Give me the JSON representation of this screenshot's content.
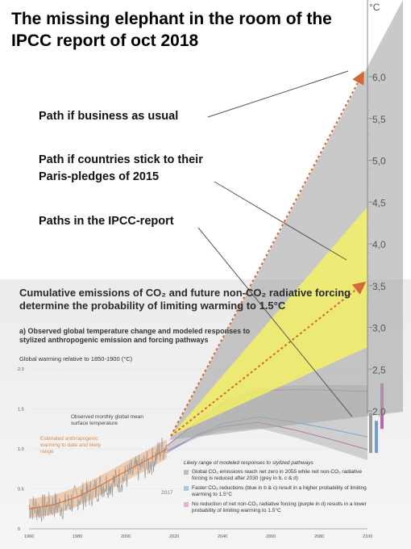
{
  "headline": "The missing elephant in the room of the IPCC report of oct 2018",
  "annotations": {
    "business_as_usual": "Path if business as usual",
    "paris_pledges": "Path if countries stick to their Paris-pledges of 2015",
    "ipcc_paths": "Paths in the IPCC-report"
  },
  "overlay_axis": {
    "unit": "°C",
    "ticks": [
      "6,0",
      "5,5",
      "5,0",
      "4,5",
      "4,0",
      "3,5",
      "3,0",
      "2,5",
      "2,0"
    ]
  },
  "panel": {
    "title": "Cumulative emissions of CO₂ and future non-CO₂ radiative forcing determine the probability of limiting warming to 1.5°C",
    "subtitle": "a) Observed global temperature change and modeled responses to stylized anthropogenic emission and forcing pathways",
    "axis_title": "Global warming relative to 1850-1900 (°C)",
    "y_ticks": [
      "2.0",
      "1.5",
      "1.0",
      "0.5",
      "0"
    ],
    "x_ticks": [
      "1960",
      "1980",
      "2000",
      "2020",
      "2040",
      "2060",
      "2080",
      "2100"
    ],
    "observed_label": "Observed monthly global mean surface temperature",
    "estimated_label": "Estimated anthropogenic warming to date and likely range",
    "year_label": "2017",
    "legend": {
      "heading": "Likely range of modeled responses to stylized pathways",
      "items": [
        "Global CO₂ emissions reach net zero in 2055 while net non-CO₂ radiative forcing is reduced after 2030 (grey in b, c & d)",
        "Faster CO₂ reductions (blue in b & c) result in a higher probability of limiting warming to 1.5°C",
        "No reduction of net non-CO₂ radiative forcing (purple in d) results in a lower probability of limiting warming to 1.5°C"
      ]
    }
  },
  "colors": {
    "grey_fan": "#b9b9b9",
    "yellow_fan": "#f7f35e",
    "arrow": "#d4683a",
    "observed": "#9a9a9a",
    "anthropogenic": "#e9a46a",
    "blue_range": "#6f9fd0",
    "purple_range": "#b86aa8"
  },
  "chart_data": [
    {
      "type": "area",
      "title": "",
      "xlabel": "",
      "ylabel": "°C",
      "ylim": [
        2.0,
        6.2
      ],
      "series": [
        {
          "name": "Path if business as usual",
          "x": [
            2017,
            2100
          ],
          "y": [
            1.0,
            6.0
          ]
        },
        {
          "name": "Path if countries stick to their Paris-pledges of 2015",
          "x": [
            2017,
            2100
          ],
          "y": [
            1.0,
            3.5
          ]
        }
      ]
    },
    {
      "type": "line",
      "title": "Global warming relative to 1850-1900 (°C)",
      "xlim": [
        1960,
        2100
      ],
      "ylim": [
        0,
        2.0
      ],
      "series": [
        {
          "name": "Observed monthly global mean surface temperature",
          "x": [
            1960,
            1965,
            1970,
            1975,
            1980,
            1985,
            1990,
            1995,
            2000,
            2005,
            2010,
            2015,
            2017
          ],
          "y": [
            0.28,
            0.25,
            0.3,
            0.28,
            0.4,
            0.43,
            0.55,
            0.58,
            0.65,
            0.75,
            0.82,
            1.0,
            1.05
          ]
        },
        {
          "name": "Estimated anthropogenic warming to date and likely range",
          "x": [
            1960,
            1970,
            1980,
            1990,
            2000,
            2010,
            2017
          ],
          "y": [
            0.25,
            0.3,
            0.4,
            0.55,
            0.72,
            0.88,
            1.0
          ]
        },
        {
          "name": "Global CO₂ emissions reach net zero in 2055 while net non-CO₂ radiative forcing is reduced after 2030",
          "x": [
            2017,
            2030,
            2040,
            2055,
            2070,
            2085,
            2100
          ],
          "y": [
            1.0,
            1.25,
            1.4,
            1.5,
            1.45,
            1.38,
            1.3
          ]
        }
      ]
    }
  ]
}
